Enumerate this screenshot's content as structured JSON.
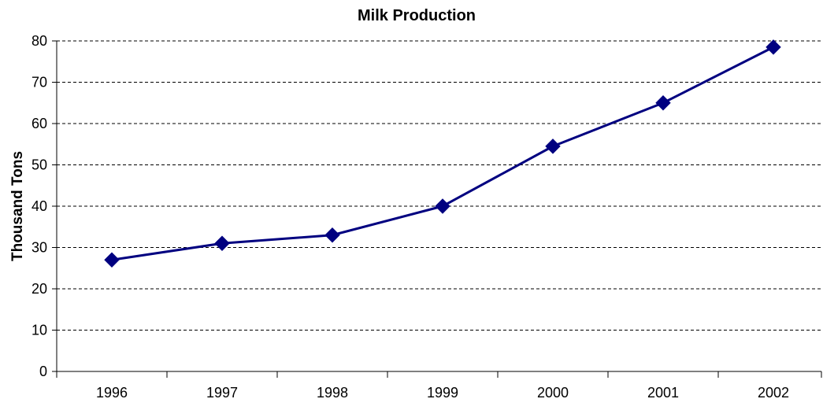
{
  "chart_data": {
    "type": "line",
    "title": "Milk Production",
    "xlabel": "",
    "ylabel": "Thousand Tons",
    "categories": [
      "1996",
      "1997",
      "1998",
      "1999",
      "2000",
      "2001",
      "2002"
    ],
    "series": [
      {
        "values": [
          27,
          31,
          33,
          40,
          54.5,
          65,
          78.5
        ],
        "color": "#000080",
        "marker": "diamond"
      }
    ],
    "ylim": [
      0,
      80
    ],
    "yticks": [
      0,
      10,
      20,
      30,
      40,
      50,
      60,
      70,
      80
    ],
    "grid": true,
    "legend": "none"
  }
}
